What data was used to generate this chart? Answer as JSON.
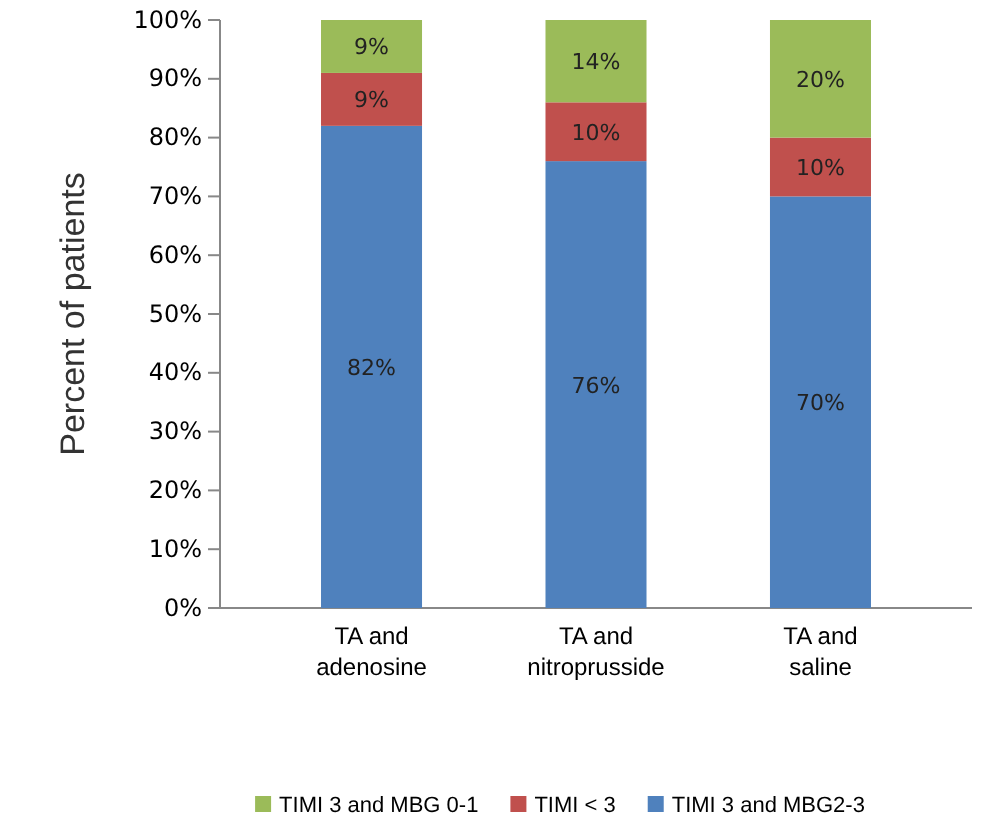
{
  "chart_data": {
    "type": "bar",
    "stacked": true,
    "ylabel": "Percent of patients",
    "categories": [
      "TA and adenosine",
      "TA and nitroprusside",
      "TA and saline"
    ],
    "series": [
      {
        "name": "TIMI 3 and MBG2-3",
        "color": "#4f81bd",
        "values": [
          82,
          76,
          70
        ],
        "value_labels": [
          "82%",
          "76%",
          "70%"
        ]
      },
      {
        "name": "TIMI < 3",
        "color": "#c0504d",
        "values": [
          9,
          10,
          10
        ],
        "value_labels": [
          "9%",
          "10%",
          "10%"
        ]
      },
      {
        "name": "TIMI 3 and MBG 0-1",
        "color": "#9bbb59",
        "values": [
          9,
          14,
          20
        ],
        "value_labels": [
          "9%",
          "14%",
          "20%"
        ]
      }
    ],
    "ylim": [
      0,
      100
    ],
    "yticks": [
      {
        "value": 0,
        "label": "0%"
      },
      {
        "value": 10,
        "label": "10%"
      },
      {
        "value": 20,
        "label": "20%"
      },
      {
        "value": 30,
        "label": "30%"
      },
      {
        "value": 40,
        "label": "40%"
      },
      {
        "value": 50,
        "label": "50%"
      },
      {
        "value": 60,
        "label": "60%"
      },
      {
        "value": 70,
        "label": "70%"
      },
      {
        "value": 80,
        "label": "80%"
      },
      {
        "value": 90,
        "label": "90%"
      },
      {
        "value": 100,
        "label": "100%"
      }
    ],
    "grid": false,
    "legend": "bottom"
  }
}
